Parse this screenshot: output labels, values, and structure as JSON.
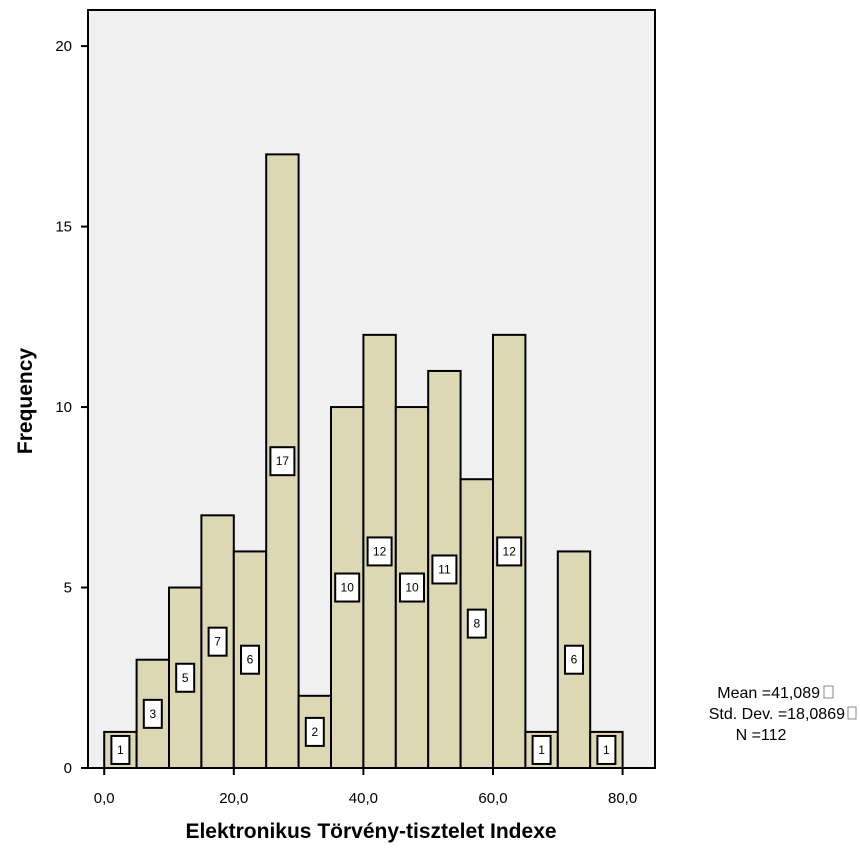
{
  "chart_data": {
    "type": "bar",
    "xlabel": "Elektronikus Törvény-tisztelet Indexe",
    "ylabel": "Frequency",
    "xlim": [
      -2.5,
      85
    ],
    "ylim": [
      0,
      21
    ],
    "bin_width": 5,
    "x_ticks": [
      0,
      20,
      40,
      60,
      80
    ],
    "x_tick_labels": [
      "0,0",
      "20,0",
      "40,0",
      "60,0",
      "80,0"
    ],
    "y_ticks": [
      0,
      5,
      10,
      15,
      20
    ],
    "y_tick_labels": [
      "0",
      "5",
      "10",
      "15",
      "20"
    ],
    "bins": [
      {
        "start": 0,
        "end": 5,
        "value": 1,
        "label": "1"
      },
      {
        "start": 5,
        "end": 10,
        "value": 3,
        "label": "3"
      },
      {
        "start": 10,
        "end": 15,
        "value": 5,
        "label": "5"
      },
      {
        "start": 15,
        "end": 20,
        "value": 7,
        "label": "7"
      },
      {
        "start": 20,
        "end": 25,
        "value": 6,
        "label": "6"
      },
      {
        "start": 25,
        "end": 30,
        "value": 17,
        "label": "17"
      },
      {
        "start": 30,
        "end": 35,
        "value": 2,
        "label": "2"
      },
      {
        "start": 35,
        "end": 40,
        "value": 10,
        "label": "10"
      },
      {
        "start": 40,
        "end": 45,
        "value": 12,
        "label": "12"
      },
      {
        "start": 45,
        "end": 50,
        "value": 10,
        "label": "10"
      },
      {
        "start": 50,
        "end": 55,
        "value": 11,
        "label": "11"
      },
      {
        "start": 55,
        "end": 60,
        "value": 8,
        "label": "8"
      },
      {
        "start": 60,
        "end": 65,
        "value": 12,
        "label": "12"
      },
      {
        "start": 65,
        "end": 70,
        "value": 1,
        "label": "1"
      },
      {
        "start": 70,
        "end": 75,
        "value": 6,
        "label": "6"
      },
      {
        "start": 75,
        "end": 80,
        "value": 1,
        "label": "1"
      }
    ],
    "stats": {
      "mean": "Mean =41,089",
      "std_dev": "Std. Dev. =18,0869",
      "n": "N =112"
    },
    "grid": false
  },
  "colors": {
    "plot_background": "#f0f0f0",
    "bar_fill": "#dcd8b4",
    "bar_stroke": "#000000",
    "label_box_fill": "#ffffff"
  }
}
